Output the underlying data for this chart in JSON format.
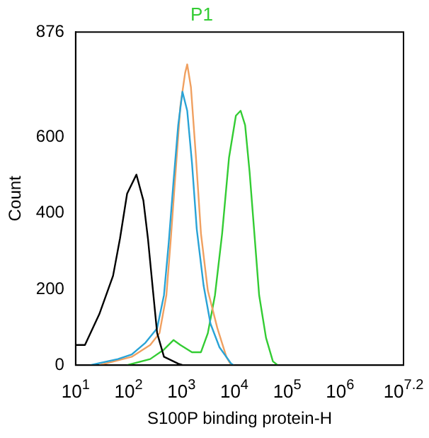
{
  "chart_data": {
    "type": "line",
    "title": "P1",
    "xlabel": "S100P binding protein-H",
    "ylabel": "Count",
    "log": "x",
    "grid": false,
    "legend": false,
    "marker": "none",
    "xlim": [
      10,
      15848932
    ],
    "xticks": [
      {
        "value": 10,
        "label": "10$^{1}$"
      },
      {
        "value": 100,
        "label": "10$^{2}$"
      },
      {
        "value": 1000,
        "label": "10$^{3}$"
      },
      {
        "value": 10000,
        "label": "10$^{4}$"
      },
      {
        "value": 100000,
        "label": "10$^{5}$"
      },
      {
        "value": 1000000,
        "label": "10$^{6}$"
      },
      {
        "value": 15848932,
        "label": "10$^{7.2}$"
      }
    ],
    "ylim": [
      0,
      876
    ],
    "yticks": [
      0,
      200,
      400,
      600,
      876
    ],
    "series": [
      {
        "color": "#000000",
        "x": [
          10,
          15,
          28,
          51,
          69,
          94,
          141,
          191,
          233,
          284,
          347,
          468,
          870,
          1050
        ],
        "values": [
          53,
          53,
          134,
          235,
          333,
          451,
          501,
          433,
          333,
          209,
          85,
          22,
          4,
          0
        ]
      },
      {
        "color": "#29a3d6",
        "x": [
          19,
          63,
          115,
          209,
          347,
          468,
          575,
          708,
          870,
          1047,
          1288,
          1585,
          1950,
          2630,
          3550,
          5250,
          8710,
          9770
        ],
        "values": [
          0,
          16,
          28,
          59,
          97,
          184,
          321,
          482,
          631,
          719,
          669,
          532,
          358,
          209,
          109,
          47,
          4,
          0
        ]
      },
      {
        "color": "#f0a060",
        "x": [
          28,
          115,
          257,
          385,
          520,
          631,
          776,
          955,
          1175,
          1288,
          1514,
          1862,
          2344,
          3160,
          4790,
          7080,
          8710
        ],
        "values": [
          0,
          22,
          53,
          84,
          184,
          333,
          507,
          681,
          768,
          791,
          731,
          557,
          346,
          196,
          97,
          22,
          0
        ]
      },
      {
        "color": "#33cc33",
        "x": [
          94,
          257,
          468,
          708,
          955,
          1585,
          2344,
          3160,
          4315,
          5890,
          7940,
          10720,
          13180,
          16030,
          19500,
          23990,
          29510,
          39810,
          53700,
          66070
        ],
        "values": [
          0,
          16,
          41,
          66,
          53,
          34,
          34,
          84,
          184,
          346,
          545,
          656,
          669,
          631,
          507,
          346,
          184,
          72,
          10,
          0
        ]
      }
    ]
  }
}
